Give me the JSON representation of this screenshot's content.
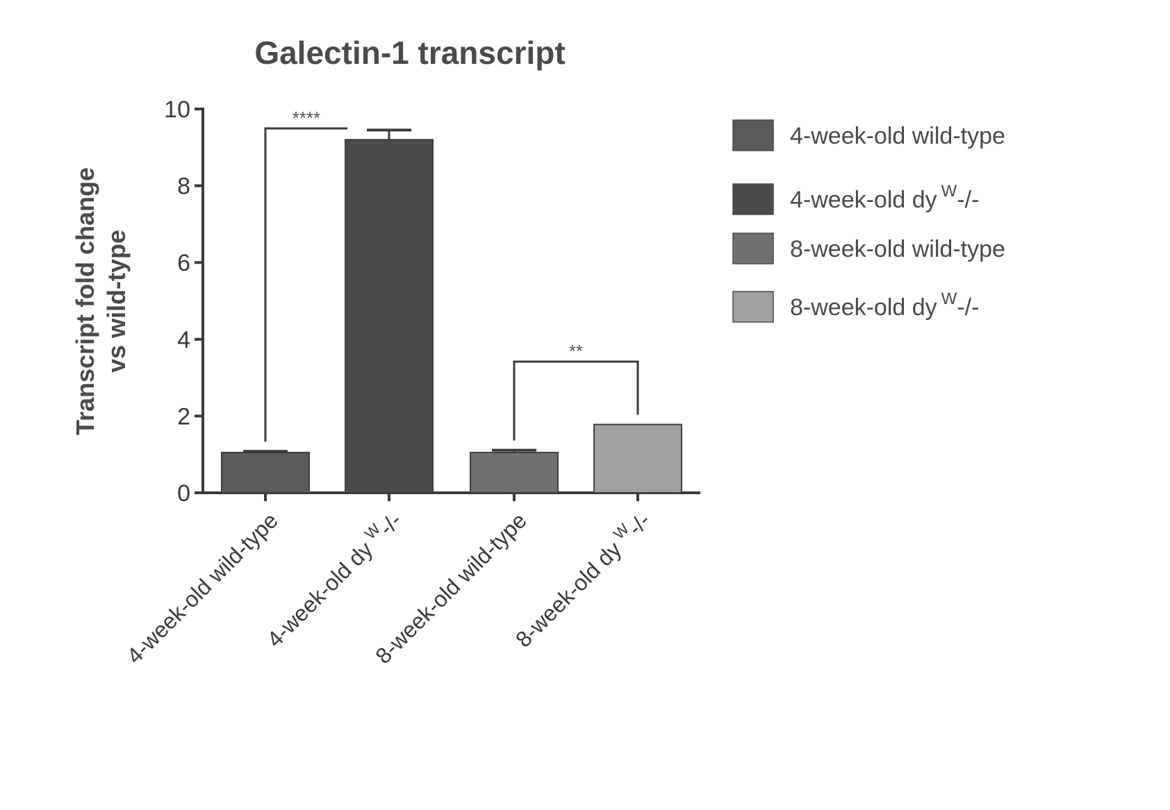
{
  "chart_data": {
    "type": "bar",
    "title": "Galectin-1 transcript",
    "ylabel_lines": [
      "Transcript fold change",
      "vs wild-type"
    ],
    "xlabel": "",
    "ylim": [
      0,
      10
    ],
    "yticks": [
      0,
      2,
      4,
      6,
      8,
      10
    ],
    "categories": [
      {
        "label": "4-week-old wild-type",
        "sup": ""
      },
      {
        "label": "4-week-old dy",
        "sup": "W",
        "suffix": "-/-"
      },
      {
        "label": "8-week-old wild-type",
        "sup": ""
      },
      {
        "label": "8-week-old dy",
        "sup": "W",
        "suffix": "-/-"
      }
    ],
    "values": [
      1.05,
      9.2,
      1.05,
      1.78
    ],
    "errors": [
      0.03,
      0.25,
      0.06,
      0.0
    ],
    "colors": [
      "#5a5a5a",
      "#4a4a4a",
      "#707070",
      "#a0a0a0"
    ],
    "legend_position": "right",
    "legend": [
      {
        "label": "4-week-old wild-type",
        "sup": "",
        "suffix": ""
      },
      {
        "label": "4-week-old dy",
        "sup": "W",
        "suffix": "-/-"
      },
      {
        "label": "8-week-old wild-type",
        "sup": "",
        "suffix": ""
      },
      {
        "label": "8-week-old dy",
        "sup": "W",
        "suffix": "-/-"
      }
    ],
    "significance": [
      {
        "from": 0,
        "to": 1,
        "label": "****"
      },
      {
        "from": 2,
        "to": 3,
        "label": "**"
      }
    ]
  }
}
